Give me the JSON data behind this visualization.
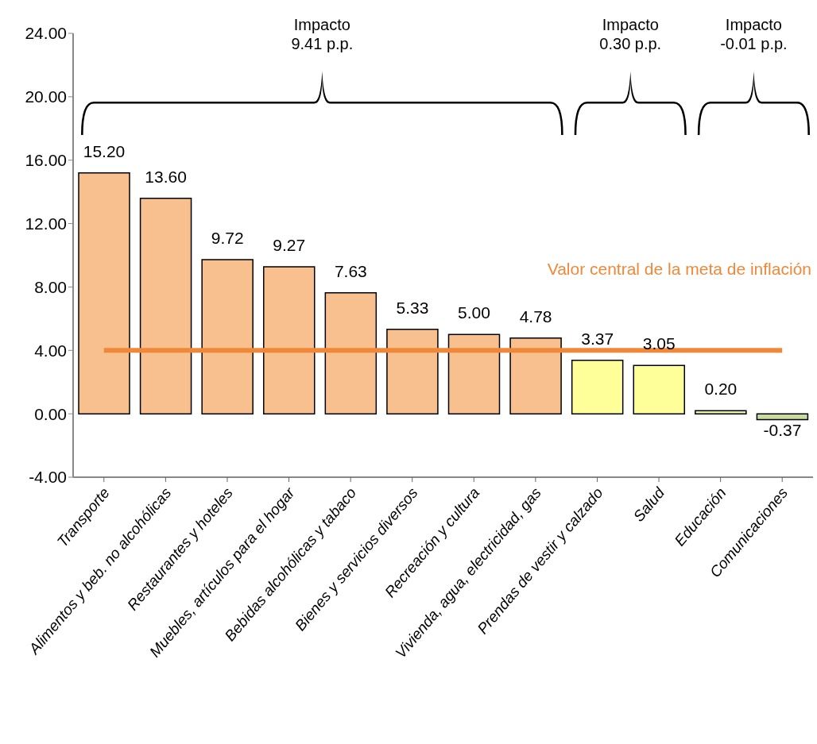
{
  "chart_data": {
    "type": "bar",
    "categories": [
      "Transporte",
      "Alimentos y beb. no alcohólicas",
      "Restaurantes y hoteles",
      "Muebles, artículos para el hogar",
      "Bebidas alcohólicas y tabaco",
      "Bienes y servicios diversos",
      "Recreación y cultura",
      "Vivienda, agua, electricidad, gas",
      "Prendas de vestir y calzado",
      "Salud",
      "Educación",
      "Comunicaciones"
    ],
    "values": [
      15.2,
      13.6,
      9.72,
      9.27,
      7.63,
      5.33,
      5.0,
      4.78,
      3.37,
      3.05,
      0.2,
      -0.37
    ],
    "colors": [
      "#f9c08f",
      "#f9c08f",
      "#f9c08f",
      "#f9c08f",
      "#f9c08f",
      "#f9c08f",
      "#f9c08f",
      "#f9c08f",
      "#ffff99",
      "#ffff99",
      "#ebf1a8",
      "#c9dba0"
    ],
    "value_labels": [
      "15.20",
      "13.60",
      "9.72",
      "9.27",
      "7.63",
      "5.33",
      "5.00",
      "4.78",
      "3.37",
      "3.05",
      "0.20",
      "-0.37"
    ],
    "ylim": [
      -4,
      24
    ],
    "yticks": [
      {
        "value": -4,
        "label": "-4.00"
      },
      {
        "value": 0,
        "label": "0.00"
      },
      {
        "value": 4,
        "label": "4.00"
      },
      {
        "value": 8,
        "label": "8.00"
      },
      {
        "value": 12,
        "label": "12.00"
      },
      {
        "value": 16,
        "label": "16.00"
      },
      {
        "value": 20,
        "label": "20.00"
      },
      {
        "value": 24,
        "label": "24.00"
      }
    ],
    "grid": false,
    "legend": false,
    "ref_lines": [
      {
        "axis": "y",
        "value": 4,
        "label": "Valor central de la meta de inflación",
        "color": "#f0883a"
      }
    ],
    "annotations": [
      "Impacto\n9.41 p.p.",
      "Impacto\n0.30 p.p.",
      "Impacto\n-0.01 p.p."
    ]
  }
}
